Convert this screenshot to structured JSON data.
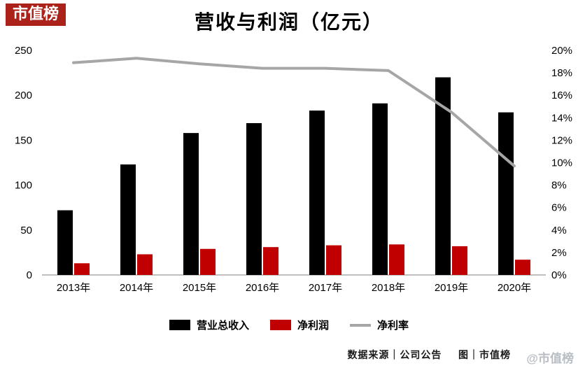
{
  "badge": {
    "label": "市值榜",
    "bg": "#ab221a",
    "fg": "#ffffff"
  },
  "chart_data": {
    "type": "bar+line",
    "title": "营收与利润（亿元）",
    "categories": [
      "2013年",
      "2014年",
      "2015年",
      "2016年",
      "2017年",
      "2018年",
      "2019年",
      "2020年"
    ],
    "series": [
      {
        "name": "营业总收入",
        "type": "bar",
        "axis": "left",
        "color": "#000000",
        "values": [
          72,
          123,
          158,
          169,
          183,
          191,
          220,
          181
        ]
      },
      {
        "name": "净利润",
        "type": "bar",
        "axis": "left",
        "color": "#c00000",
        "values": [
          13,
          23,
          29,
          31,
          33,
          34,
          32,
          17
        ]
      },
      {
        "name": "净利率",
        "type": "line",
        "axis": "right",
        "color": "#a6a6a6",
        "values": [
          18.9,
          19.3,
          18.8,
          18.4,
          18.4,
          18.2,
          14.5,
          9.7
        ]
      }
    ],
    "left_axis": {
      "min": 0,
      "max": 250,
      "step": 50
    },
    "right_axis": {
      "min": 0,
      "max": 20,
      "step": 2,
      "suffix": "%"
    },
    "grid": false,
    "legend_position": "bottom"
  },
  "footer": {
    "source": "数据来源｜公司公告",
    "credit": "图｜市值榜"
  },
  "watermark": "@市值榜"
}
